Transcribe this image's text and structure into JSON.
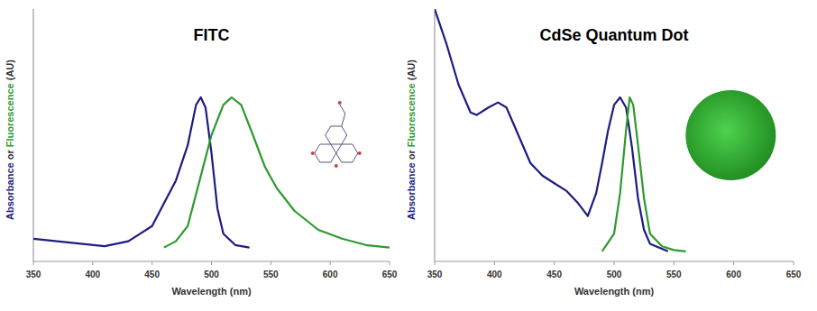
{
  "chart_data": [
    {
      "type": "line",
      "title": "FITC",
      "xlabel": "Wavelength (nm)",
      "ylabel": "Absorbance or Fluorescence (AU)",
      "xlim": [
        350,
        650
      ],
      "xticks": [
        350,
        400,
        450,
        500,
        550,
        600,
        650
      ],
      "ylim": [
        0,
        1
      ],
      "tick_labels": "x",
      "series": [
        {
          "name": "Absorbance",
          "color": "#1c1c82",
          "x": [
            350,
            370,
            390,
            410,
            430,
            450,
            460,
            470,
            480,
            487,
            491,
            495,
            500,
            505,
            510,
            520,
            532
          ],
          "values": [
            0.09,
            0.08,
            0.07,
            0.06,
            0.08,
            0.14,
            0.23,
            0.32,
            0.46,
            0.62,
            0.65,
            0.61,
            0.43,
            0.21,
            0.11,
            0.065,
            0.055
          ]
        },
        {
          "name": "Fluorescence",
          "color": "#2e9a2e",
          "x": [
            460,
            470,
            480,
            490,
            500,
            510,
            517,
            525,
            535,
            545,
            555,
            570,
            590,
            610,
            630,
            650
          ],
          "values": [
            0.055,
            0.08,
            0.14,
            0.32,
            0.5,
            0.62,
            0.65,
            0.62,
            0.5,
            0.375,
            0.29,
            0.2,
            0.125,
            0.09,
            0.065,
            0.055
          ]
        }
      ]
    },
    {
      "type": "line",
      "title": "CdSe Quantum Dot",
      "xlabel": "Wavelength (nm)",
      "ylabel": "Absorbance or Fluorescence (AU)",
      "xlim": [
        350,
        650
      ],
      "xticks": [
        350,
        400,
        450,
        500,
        550,
        600,
        650
      ],
      "ylim": [
        0,
        1
      ],
      "tick_labels": "x",
      "series": [
        {
          "name": "Absorbance",
          "color": "#1c1c82",
          "x": [
            350,
            360,
            370,
            380,
            385,
            395,
            403,
            410,
            420,
            430,
            440,
            450,
            460,
            470,
            478,
            485,
            490,
            495,
            500,
            505,
            510,
            515,
            520,
            525,
            530,
            540,
            545
          ],
          "values": [
            1.0,
            0.86,
            0.7,
            0.59,
            0.58,
            0.61,
            0.63,
            0.61,
            0.5,
            0.39,
            0.34,
            0.31,
            0.28,
            0.23,
            0.18,
            0.27,
            0.39,
            0.52,
            0.62,
            0.65,
            0.61,
            0.45,
            0.25,
            0.125,
            0.07,
            0.05,
            0.04
          ]
        },
        {
          "name": "Fluorescence",
          "color": "#2e9a2e",
          "x": [
            490,
            500,
            505,
            510,
            513,
            516,
            520,
            525,
            530,
            540,
            550,
            560
          ],
          "values": [
            0.04,
            0.11,
            0.27,
            0.52,
            0.65,
            0.62,
            0.46,
            0.25,
            0.11,
            0.06,
            0.045,
            0.04
          ]
        }
      ]
    }
  ]
}
